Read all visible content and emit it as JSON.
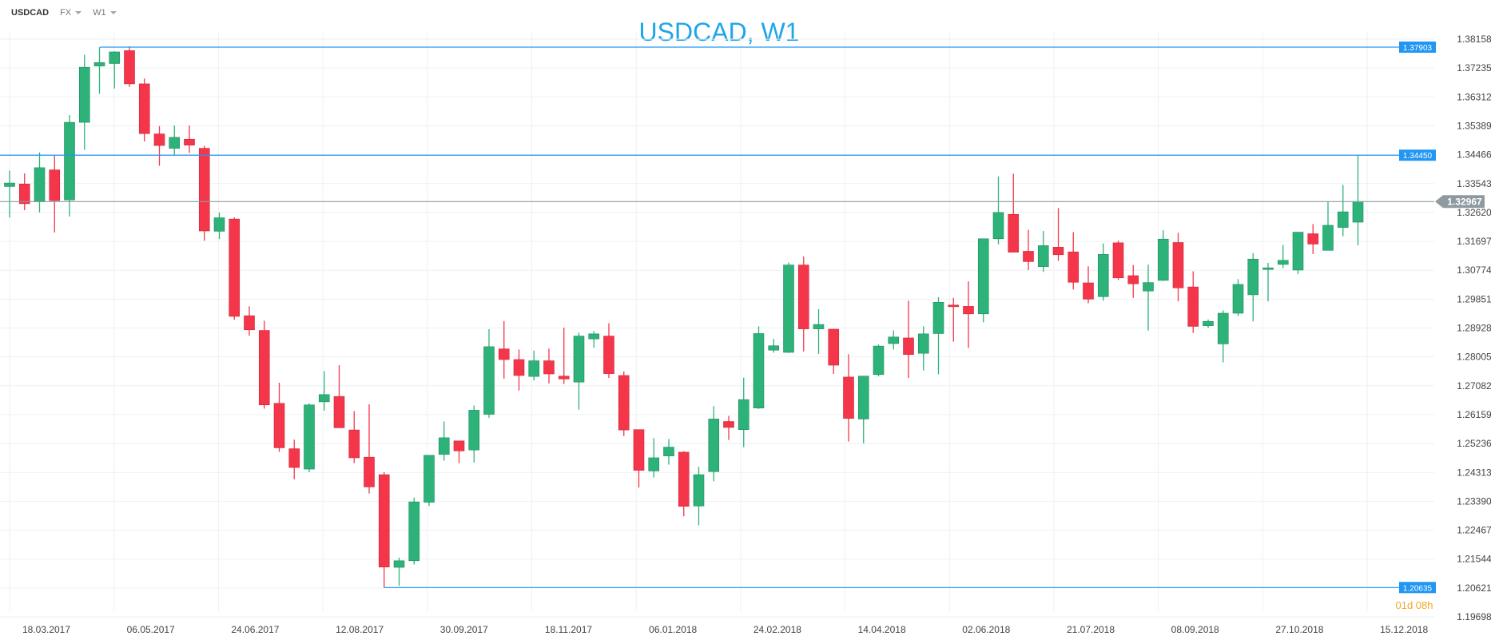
{
  "toolbar": {
    "symbol": "USDCAD",
    "category": "FX",
    "timeframe": "W1"
  },
  "countdown": "01d 08h",
  "colors": {
    "up": "#2db37a",
    "down": "#f5364a",
    "hline": "#2196f3",
    "current": "#8e9aa0",
    "countdown": "#f5a623",
    "title": "#1ea5e9"
  },
  "chart_data": {
    "type": "candlestick",
    "title": "USDCAD, W1",
    "ylim": [
      1.19698,
      1.38158
    ],
    "y_ticks": [
      "1.38158",
      "1.37235",
      "1.36312",
      "1.35389",
      "1.34466",
      "1.33543",
      "1.32620",
      "1.31697",
      "1.30774",
      "1.29851",
      "1.28928",
      "1.28005",
      "1.27082",
      "1.26159",
      "1.25236",
      "1.24313",
      "1.23390",
      "1.22467",
      "1.21544",
      "1.20621",
      "1.19698"
    ],
    "x_ticks": [
      "18.03.2017",
      "06.05.2017",
      "24.06.2017",
      "12.08.2017",
      "30.09.2017",
      "18.11.2017",
      "06.01.2018",
      "24.02.2018",
      "14.04.2018",
      "02.06.2018",
      "21.07.2018",
      "08.09.2018",
      "27.10.2018",
      "15.12.2018"
    ],
    "horizontal_lines": [
      {
        "value": 1.37903,
        "label": "1.37903"
      },
      {
        "value": 1.3445,
        "label": "1.34450"
      },
      {
        "value": 1.20635,
        "label": "1.20635"
      }
    ],
    "current_price": {
      "value": 1.32967,
      "label": "1.32967"
    },
    "grid": true,
    "candles": [
      [
        1.3345,
        1.3396,
        1.3246,
        1.3356
      ],
      [
        1.3353,
        1.3387,
        1.3269,
        1.329
      ],
      [
        1.3296,
        1.3454,
        1.3262,
        1.3405
      ],
      [
        1.3398,
        1.3445,
        1.3198,
        1.33
      ],
      [
        1.3302,
        1.3573,
        1.3249,
        1.355
      ],
      [
        1.355,
        1.3766,
        1.3462,
        1.3726
      ],
      [
        1.373,
        1.379,
        1.3641,
        1.3741
      ],
      [
        1.3738,
        1.3777,
        1.3658,
        1.3775
      ],
      [
        1.3779,
        1.3793,
        1.3663,
        1.3673
      ],
      [
        1.3673,
        1.369,
        1.3489,
        1.3514
      ],
      [
        1.3513,
        1.3538,
        1.3411,
        1.3476
      ],
      [
        1.3467,
        1.354,
        1.3445,
        1.3502
      ],
      [
        1.3496,
        1.354,
        1.3452,
        1.3477
      ],
      [
        1.3467,
        1.3475,
        1.3172,
        1.3203
      ],
      [
        1.3202,
        1.3262,
        1.3177,
        1.3245
      ],
      [
        1.3241,
        1.3246,
        1.2919,
        1.293
      ],
      [
        1.2932,
        1.2962,
        1.2868,
        1.2887
      ],
      [
        1.2885,
        1.2916,
        1.2635,
        1.2647
      ],
      [
        1.2652,
        1.2718,
        1.2497,
        1.251
      ],
      [
        1.2507,
        1.2536,
        1.2409,
        1.2447
      ],
      [
        1.2442,
        1.2652,
        1.2432,
        1.2647
      ],
      [
        1.2657,
        1.2755,
        1.2629,
        1.268
      ],
      [
        1.2674,
        1.2774,
        1.2573,
        1.2574
      ],
      [
        1.2567,
        1.2627,
        1.2461,
        1.2478
      ],
      [
        1.248,
        1.2649,
        1.2364,
        1.2385
      ],
      [
        1.2424,
        1.2432,
        1.2063,
        1.2129
      ],
      [
        1.2128,
        1.2159,
        1.2069,
        1.2149
      ],
      [
        1.2149,
        1.2351,
        1.2137,
        1.2337
      ],
      [
        1.2336,
        1.2486,
        1.2324,
        1.2486
      ],
      [
        1.2489,
        1.2594,
        1.2469,
        1.2542
      ],
      [
        1.2532,
        1.2532,
        1.2461,
        1.25
      ],
      [
        1.2503,
        1.2645,
        1.2463,
        1.263
      ],
      [
        1.2617,
        1.2889,
        1.2606,
        1.2833
      ],
      [
        1.2826,
        1.2915,
        1.2731,
        1.2792
      ],
      [
        1.2792,
        1.2824,
        1.2693,
        1.2741
      ],
      [
        1.2738,
        1.2821,
        1.2725,
        1.2788
      ],
      [
        1.2788,
        1.2827,
        1.2716,
        1.2746
      ],
      [
        1.2739,
        1.2894,
        1.2714,
        1.273
      ],
      [
        1.272,
        1.2878,
        1.2632,
        1.2867
      ],
      [
        1.2858,
        1.2883,
        1.283,
        1.2874
      ],
      [
        1.2867,
        1.2908,
        1.2733,
        1.2747
      ],
      [
        1.2741,
        1.2754,
        1.2547,
        1.2567
      ],
      [
        1.2568,
        1.2567,
        1.2383,
        1.2438
      ],
      [
        1.2436,
        1.2541,
        1.2415,
        1.2478
      ],
      [
        1.2484,
        1.2538,
        1.2456,
        1.2512
      ],
      [
        1.2496,
        1.2499,
        1.2291,
        1.2323
      ],
      [
        1.2324,
        1.2449,
        1.2262,
        1.2424
      ],
      [
        1.2434,
        1.2643,
        1.2403,
        1.2602
      ],
      [
        1.2594,
        1.2612,
        1.2535,
        1.2575
      ],
      [
        1.2568,
        1.2734,
        1.2512,
        1.2664
      ],
      [
        1.2637,
        1.2898,
        1.2634,
        1.2875
      ],
      [
        1.2822,
        1.2858,
        1.2814,
        1.2836
      ],
      [
        1.2815,
        1.3102,
        1.2813,
        1.3094
      ],
      [
        1.3094,
        1.3121,
        1.2818,
        1.289
      ],
      [
        1.289,
        1.2953,
        1.281,
        1.2904
      ],
      [
        1.2889,
        1.289,
        1.2746,
        1.2774
      ],
      [
        1.2736,
        1.2809,
        1.253,
        1.2604
      ],
      [
        1.2602,
        1.2738,
        1.2524,
        1.2739
      ],
      [
        1.2744,
        1.284,
        1.2738,
        1.2835
      ],
      [
        1.2843,
        1.2885,
        1.2824,
        1.2864
      ],
      [
        1.2861,
        1.298,
        1.2733,
        1.2808
      ],
      [
        1.2812,
        1.2898,
        1.2757,
        1.2874
      ],
      [
        1.2875,
        1.2991,
        1.2745,
        1.2975
      ],
      [
        1.2966,
        1.2989,
        1.2849,
        1.2963
      ],
      [
        1.2962,
        1.3042,
        1.2829,
        1.2938
      ],
      [
        1.2938,
        1.3177,
        1.2911,
        1.3178
      ],
      [
        1.3178,
        1.3377,
        1.316,
        1.3262
      ],
      [
        1.3256,
        1.3386,
        1.3139,
        1.3135
      ],
      [
        1.3138,
        1.3206,
        1.3078,
        1.3105
      ],
      [
        1.3089,
        1.3203,
        1.3072,
        1.3156
      ],
      [
        1.3151,
        1.3276,
        1.3107,
        1.3127
      ],
      [
        1.3136,
        1.3199,
        1.3016,
        1.3039
      ],
      [
        1.3037,
        1.309,
        1.2972,
        1.2985
      ],
      [
        1.2993,
        1.3163,
        1.298,
        1.3128
      ],
      [
        1.3165,
        1.3172,
        1.3046,
        1.3053
      ],
      [
        1.306,
        1.3094,
        1.2989,
        1.3034
      ],
      [
        1.3011,
        1.3095,
        1.2885,
        1.3038
      ],
      [
        1.3045,
        1.3205,
        1.3043,
        1.3177
      ],
      [
        1.3166,
        1.3197,
        1.2978,
        1.3021
      ],
      [
        1.3024,
        1.3074,
        1.2877,
        1.2898
      ],
      [
        1.29,
        1.292,
        1.2893,
        1.2914
      ],
      [
        1.2842,
        1.2949,
        1.2783,
        1.294
      ],
      [
        1.294,
        1.3049,
        1.2931,
        1.3032
      ],
      [
        1.2999,
        1.3132,
        1.2914,
        1.3113
      ],
      [
        1.3081,
        1.3101,
        1.2978,
        1.3085
      ],
      [
        1.3096,
        1.3158,
        1.3084,
        1.3109
      ],
      [
        1.3078,
        1.3197,
        1.3065,
        1.3199
      ],
      [
        1.3194,
        1.3225,
        1.3129,
        1.3161
      ],
      [
        1.3141,
        1.3298,
        1.3144,
        1.3221
      ],
      [
        1.3214,
        1.335,
        1.3186,
        1.3264
      ],
      [
        1.3231,
        1.3445,
        1.3157,
        1.3297
      ]
    ]
  }
}
